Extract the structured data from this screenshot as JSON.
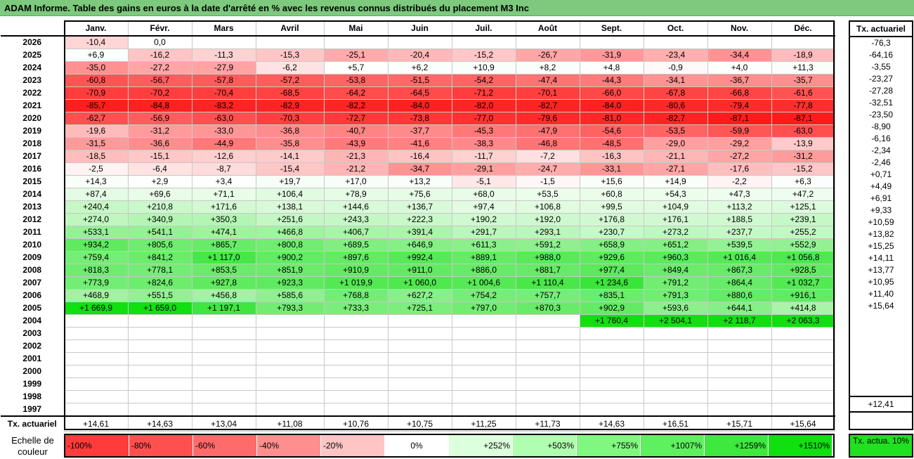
{
  "title": "ADAM Informe. Table des gains en euros à la date d'arrêté en % avec les revenus connus distribués du placement M3 Inc",
  "months": [
    "Janv.",
    "Févr.",
    "Mars",
    "Avril",
    "Mai",
    "Juin",
    "Juil.",
    "Août",
    "Sept.",
    "Oct.",
    "Nov.",
    "Déc."
  ],
  "side_header": "Tx. actuariel",
  "rows": [
    {
      "year": "2026",
      "values": [
        "-10,4",
        "0,0",
        "",
        "",
        "",
        "",
        "",
        "",
        "",
        "",
        "",
        ""
      ],
      "tx": "-76,3"
    },
    {
      "year": "2025",
      "values": [
        "+6,9",
        "-16,2",
        "-11,3",
        "-15,3",
        "-25,1",
        "-20,4",
        "-15,2",
        "-26,7",
        "-31,9",
        "-23,4",
        "-34,4",
        "-18,9"
      ],
      "tx": "-64,16"
    },
    {
      "year": "2024",
      "values": [
        "-35,0",
        "-27,2",
        "-27,9",
        "-6,2",
        "+5,7",
        "+6,2",
        "+10,9",
        "+8,2",
        "+4,8",
        "-0,9",
        "+4,0",
        "+11,3"
      ],
      "tx": "-3,55"
    },
    {
      "year": "2023",
      "values": [
        "-60,8",
        "-56,7",
        "-57,8",
        "-57,2",
        "-53,8",
        "-51,5",
        "-54,2",
        "-47,4",
        "-44,3",
        "-34,1",
        "-36,7",
        "-35,7"
      ],
      "tx": "-23,27"
    },
    {
      "year": "2022",
      "values": [
        "-70,9",
        "-70,2",
        "-70,4",
        "-68,5",
        "-64,2",
        "-64,5",
        "-71,2",
        "-70,1",
        "-66,0",
        "-67,8",
        "-66,8",
        "-61,6"
      ],
      "tx": "-27,28"
    },
    {
      "year": "2021",
      "values": [
        "-85,7",
        "-84,8",
        "-83,2",
        "-82,9",
        "-82,2",
        "-84,0",
        "-82,0",
        "-82,7",
        "-84,0",
        "-80,6",
        "-79,4",
        "-77,8"
      ],
      "tx": "-32,51"
    },
    {
      "year": "2020",
      "values": [
        "-62,7",
        "-56,9",
        "-63,0",
        "-70,3",
        "-72,7",
        "-73,8",
        "-77,0",
        "-79,6",
        "-81,0",
        "-82,7",
        "-87,1",
        "-87,1"
      ],
      "tx": "-23,50"
    },
    {
      "year": "2019",
      "values": [
        "-19,6",
        "-31,2",
        "-33,0",
        "-36,8",
        "-40,7",
        "-37,7",
        "-45,3",
        "-47,9",
        "-54,6",
        "-53,5",
        "-59,9",
        "-63,0"
      ],
      "tx": "-8,90"
    },
    {
      "year": "2018",
      "values": [
        "-31,5",
        "-36,6",
        "-44,9",
        "-35,8",
        "-43,9",
        "-41,6",
        "-38,3",
        "-46,8",
        "-48,5",
        "-29,0",
        "-29,2",
        "-13,9"
      ],
      "tx": "-6,16"
    },
    {
      "year": "2017",
      "values": [
        "-18,5",
        "-15,1",
        "-12,6",
        "-14,1",
        "-21,3",
        "-16,4",
        "-11,7",
        "-7,2",
        "-16,3",
        "-21,1",
        "-27,2",
        "-31,2"
      ],
      "tx": "-2,34"
    },
    {
      "year": "2016",
      "values": [
        "-2,5",
        "-6,4",
        "-8,7",
        "-15,4",
        "-21,2",
        "-34,7",
        "-29,1",
        "-24,7",
        "-33,1",
        "-27,1",
        "-17,6",
        "-15,2"
      ],
      "tx": "-2,46"
    },
    {
      "year": "2015",
      "values": [
        "+14,3",
        "+2,9",
        "+3,4",
        "+19,7",
        "+17,0",
        "+13,2",
        "-5,1",
        "-1,5",
        "+15,6",
        "+14,9",
        "-2,2",
        "+6,3"
      ],
      "tx": "+0,71"
    },
    {
      "year": "2014",
      "values": [
        "+87,4",
        "+69,6",
        "+71,1",
        "+106,4",
        "+78,9",
        "+75,6",
        "+68,0",
        "+53,5",
        "+60,8",
        "+54,3",
        "+47,3",
        "+47,2"
      ],
      "tx": "+4,49"
    },
    {
      "year": "2013",
      "values": [
        "+240,4",
        "+210,8",
        "+171,6",
        "+138,1",
        "+144,6",
        "+136,7",
        "+97,4",
        "+106,8",
        "+99,5",
        "+104,9",
        "+113,2",
        "+125,1"
      ],
      "tx": "+6,91"
    },
    {
      "year": "2012",
      "values": [
        "+274,0",
        "+340,9",
        "+350,3",
        "+251,6",
        "+243,3",
        "+222,3",
        "+190,2",
        "+192,0",
        "+176,8",
        "+176,1",
        "+188,5",
        "+239,1"
      ],
      "tx": "+9,33"
    },
    {
      "year": "2011",
      "values": [
        "+533,1",
        "+541,1",
        "+474,1",
        "+466,8",
        "+406,7",
        "+391,4",
        "+291,7",
        "+293,1",
        "+230,7",
        "+273,2",
        "+237,7",
        "+255,2"
      ],
      "tx": "+10,59"
    },
    {
      "year": "2010",
      "values": [
        "+934,2",
        "+805,6",
        "+865,7",
        "+800,8",
        "+689,5",
        "+646,9",
        "+611,3",
        "+591,2",
        "+658,9",
        "+651,2",
        "+539,5",
        "+552,9"
      ],
      "tx": "+13,82"
    },
    {
      "year": "2009",
      "values": [
        "+759,4",
        "+841,2",
        "+1 117,0",
        "+900,2",
        "+897,6",
        "+992,4",
        "+889,1",
        "+988,0",
        "+929,6",
        "+960,3",
        "+1 016,4",
        "+1 056,8"
      ],
      "tx": "+15,25"
    },
    {
      "year": "2008",
      "values": [
        "+818,3",
        "+778,1",
        "+853,5",
        "+851,9",
        "+910,9",
        "+911,0",
        "+886,0",
        "+881,7",
        "+977,4",
        "+849,4",
        "+867,3",
        "+928,5"
      ],
      "tx": "+14,11"
    },
    {
      "year": "2007",
      "values": [
        "+773,9",
        "+824,6",
        "+927,8",
        "+923,3",
        "+1 019,9",
        "+1 060,0",
        "+1 004,6",
        "+1 110,4",
        "+1 234,6",
        "+791,2",
        "+864,4",
        "+1 032,7"
      ],
      "tx": "+13,77"
    },
    {
      "year": "2006",
      "values": [
        "+468,9",
        "+551,5",
        "+456,8",
        "+585,6",
        "+768,8",
        "+627,2",
        "+754,2",
        "+757,7",
        "+835,1",
        "+791,3",
        "+880,6",
        "+916,1"
      ],
      "tx": "+10,95"
    },
    {
      "year": "2005",
      "values": [
        "+1 669,9",
        "+1 659,0",
        "+1 197,1",
        "+793,3",
        "+733,3",
        "+725,1",
        "+797,0",
        "+870,3",
        "+902,9",
        "+593,6",
        "+644,1",
        "+414,8"
      ],
      "tx": "+11,40"
    },
    {
      "year": "2004",
      "values": [
        "",
        "",
        "",
        "",
        "",
        "",
        "",
        "",
        "+1 760,4",
        "+2 504,1",
        "+2 118,7",
        "+2 063,3"
      ],
      "tx": "+15,64"
    },
    {
      "year": "2003",
      "values": [
        "",
        "",
        "",
        "",
        "",
        "",
        "",
        "",
        "",
        "",
        "",
        ""
      ],
      "tx": ""
    },
    {
      "year": "2002",
      "values": [
        "",
        "",
        "",
        "",
        "",
        "",
        "",
        "",
        "",
        "",
        "",
        ""
      ],
      "tx": ""
    },
    {
      "year": "2001",
      "values": [
        "",
        "",
        "",
        "",
        "",
        "",
        "",
        "",
        "",
        "",
        "",
        ""
      ],
      "tx": ""
    },
    {
      "year": "2000",
      "values": [
        "",
        "",
        "",
        "",
        "",
        "",
        "",
        "",
        "",
        "",
        "",
        ""
      ],
      "tx": ""
    },
    {
      "year": "1999",
      "values": [
        "",
        "",
        "",
        "",
        "",
        "",
        "",
        "",
        "",
        "",
        "",
        ""
      ],
      "tx": ""
    },
    {
      "year": "1998",
      "values": [
        "",
        "",
        "",
        "",
        "",
        "",
        "",
        "",
        "",
        "",
        "",
        ""
      ],
      "tx": ""
    },
    {
      "year": "1997",
      "values": [
        "",
        "",
        "",
        "",
        "",
        "",
        "",
        "",
        "",
        "",
        "",
        ""
      ],
      "tx": ""
    }
  ],
  "total_row": {
    "label": "Tx. actuariel",
    "values": [
      "+14,61",
      "+14,63",
      "+13,04",
      "+11,08",
      "+10,76",
      "+10,75",
      "+11,25",
      "+11,73",
      "+14,63",
      "+16,51",
      "+15,71",
      "+15,64"
    ],
    "tx": "+12,41"
  },
  "scale": {
    "label": "Echelle de couleur",
    "steps": [
      {
        "text": "-100%",
        "color": "#ff3b3b"
      },
      {
        "text": "-80%",
        "color": "#ff5050"
      },
      {
        "text": "-60%",
        "color": "#ff6a6a"
      },
      {
        "text": "-40%",
        "color": "#ff8f8f"
      },
      {
        "text": "-20%",
        "color": "#ffc4c4"
      },
      {
        "text": "0%",
        "color": "#ffffff"
      },
      {
        "text": "+252%",
        "color": "#dcffdc"
      },
      {
        "text": "+503%",
        "color": "#b0ffb0"
      },
      {
        "text": "+755%",
        "color": "#80f880"
      },
      {
        "text": "+1007%",
        "color": "#5ef05e"
      },
      {
        "text": "+1259%",
        "color": "#3ee83e"
      },
      {
        "text": "+1510%",
        "color": "#10e010"
      }
    ],
    "tx_label": "Tx. actua. 10%",
    "tx_color": "#20e020"
  }
}
